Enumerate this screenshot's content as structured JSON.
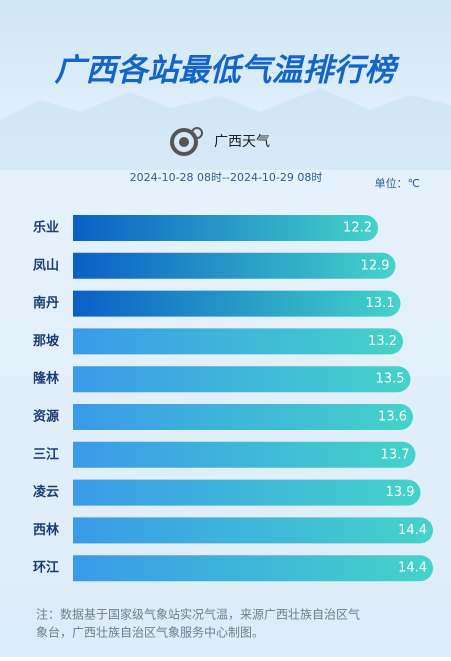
{
  "chart_data": {
    "type": "hbar",
    "title": "广西各站最低气温排行榜",
    "logo_text": "广西天气",
    "subtitle": "2024-10-28 08时--2024-10-29 08时",
    "unit": "单位：℃",
    "categories": [
      "乐业",
      "凤山",
      "南丹",
      "那坡",
      "隆林",
      "资源",
      "三江",
      "凌云",
      "西林",
      "环江"
    ],
    "values": [
      12.2,
      12.9,
      13.1,
      13.2,
      13.5,
      13.6,
      13.7,
      13.9,
      14.4,
      14.4
    ],
    "colors": [
      "#0a5fc5",
      "#0a5fc5",
      "#0a5fc5",
      "#3a9ae9",
      "#3a9ae9",
      "#3a9ae9",
      "#3a9ae9",
      "#3a9ae9",
      "#3a9ae9",
      "#3a9ae9"
    ],
    "note": [
      "注：数据基于国家级气象站实况气温，来源广西壮族自治区气",
      "象台，广西壮族自治区气象服务中心制图。"
    ]
  }
}
